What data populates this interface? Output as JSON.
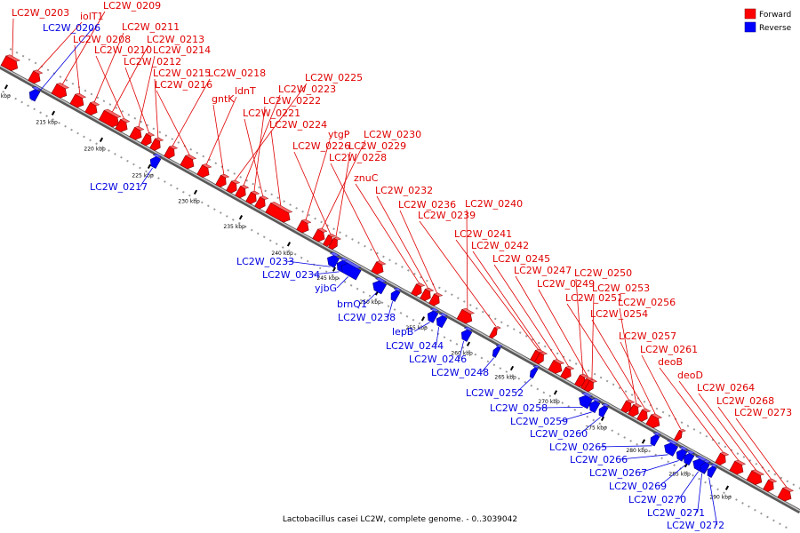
{
  "caption": "Lactobacillus casei LC2W, complete genome. - 0..3039042",
  "legend": {
    "forward": {
      "label": "Forward",
      "color": "#ff0000"
    },
    "reverse": {
      "label": "Reverse",
      "color": "#0000ff"
    }
  },
  "ticks": [
    "210 kbp",
    "215 kbp",
    "220 kbp",
    "225 kbp",
    "230 kbp",
    "235 kbp",
    "240 kbp",
    "245 kbp",
    "250 kbp",
    "255 kbp",
    "260 kbp",
    "265 kbp",
    "270 kbp",
    "275 kbp",
    "280 kbp",
    "285 kbp",
    "290 kbp"
  ],
  "forward_genes": [
    "LC2W_0203",
    "iolT1",
    "LC2W_0209",
    "LC2W_0208",
    "LC2W_0211",
    "LC2W_0213",
    "LC2W_0210",
    "LC2W_0214",
    "LC2W_0212",
    "LC2W_0215",
    "LC2W_0218",
    "LC2W_0216",
    "ldnT",
    "gntK",
    "LC2W_0225",
    "LC2W_0223",
    "LC2W_0222",
    "LC2W_0221",
    "LC2W_0224",
    "ytgP",
    "LC2W_0230",
    "LC2W_0226",
    "LC2W_0229",
    "LC2W_0228",
    "znuC",
    "LC2W_0232",
    "LC2W_0236",
    "LC2W_0240",
    "LC2W_0239",
    "LC2W_0241",
    "LC2W_0242",
    "LC2W_0245",
    "LC2W_0247",
    "LC2W_0250",
    "LC2W_0249",
    "LC2W_0253",
    "LC2W_0251",
    "LC2W_0256",
    "LC2W_0254",
    "LC2W_0257",
    "LC2W_0261",
    "deoB",
    "deoD",
    "LC2W_0264",
    "LC2W_0268",
    "LC2W_0273"
  ],
  "reverse_genes": [
    "LC2W_0206",
    "LC2W_0217",
    "LC2W_0233",
    "LC2W_0234",
    "yjbG",
    "brnQ1",
    "LC2W_0238",
    "lepB",
    "LC2W_0244",
    "LC2W_0246",
    "LC2W_0248",
    "LC2W_0252",
    "LC2W_0258",
    "LC2W_0259",
    "LC2W_0260",
    "LC2W_0265",
    "LC2W_0266",
    "LC2W_0267",
    "LC2W_0269",
    "LC2W_0270",
    "LC2W_0271",
    "LC2W_0272"
  ]
}
